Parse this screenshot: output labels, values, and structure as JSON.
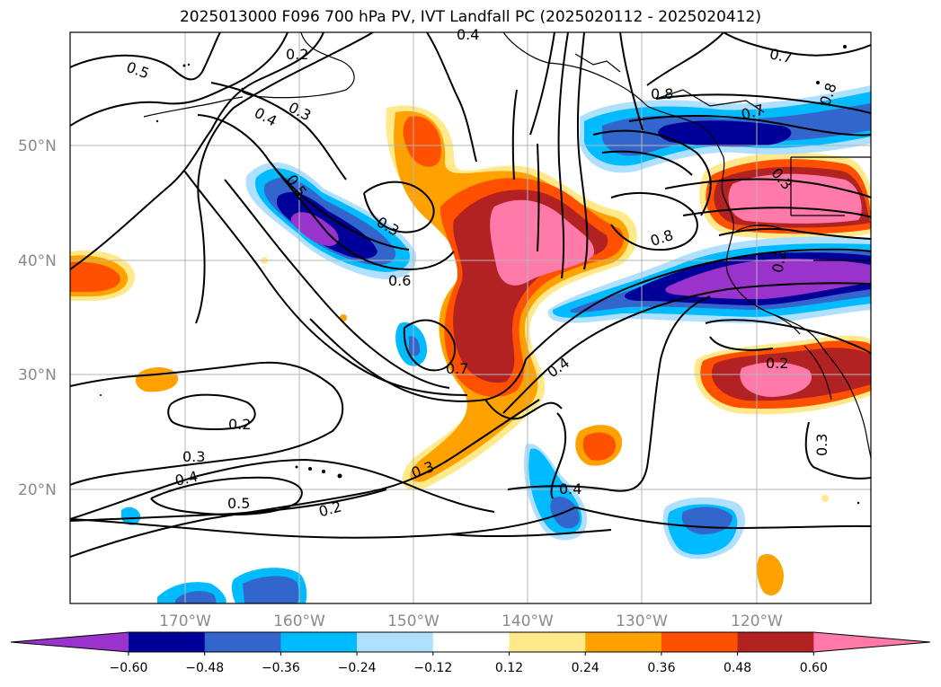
{
  "figure": {
    "title": "2025013000 F096 700 hPa PV, IVT Landfall PC (2025020112 - 2025020412)"
  },
  "axes": {
    "x_ticks": [
      "170°W",
      "160°W",
      "150°W",
      "140°W",
      "130°W",
      "120°W"
    ],
    "y_ticks": [
      "50°N",
      "40°N",
      "30°N",
      "20°N"
    ],
    "grid": true
  },
  "contour_labels": [
    "0.5",
    "0.2",
    "0.4",
    "0.4",
    "0.3",
    "0.5",
    "0.3",
    "0.6",
    "0.7",
    "0.4",
    "0.2",
    "0.3",
    "0.4",
    "0.5",
    "0.3",
    "0.2",
    "0.4",
    "0.7",
    "0.8",
    "0.8",
    "0.7",
    "0.8",
    "0.3",
    "0.2",
    "0.2",
    "0.3"
  ],
  "colorbar": {
    "tick_labels": [
      "−0.60",
      "−0.48",
      "−0.36",
      "−0.24",
      "−0.12",
      "0.12",
      "0.24",
      "0.36",
      "0.48",
      "0.60"
    ],
    "colors": [
      "#9933cc",
      "#000099",
      "#3366cc",
      "#00bbff",
      "#b0e0ff",
      "#ffffff",
      "#ffe98a",
      "#ffa200",
      "#ff5000",
      "#b22222",
      "#ff7aa8"
    ],
    "extend": "both"
  }
}
